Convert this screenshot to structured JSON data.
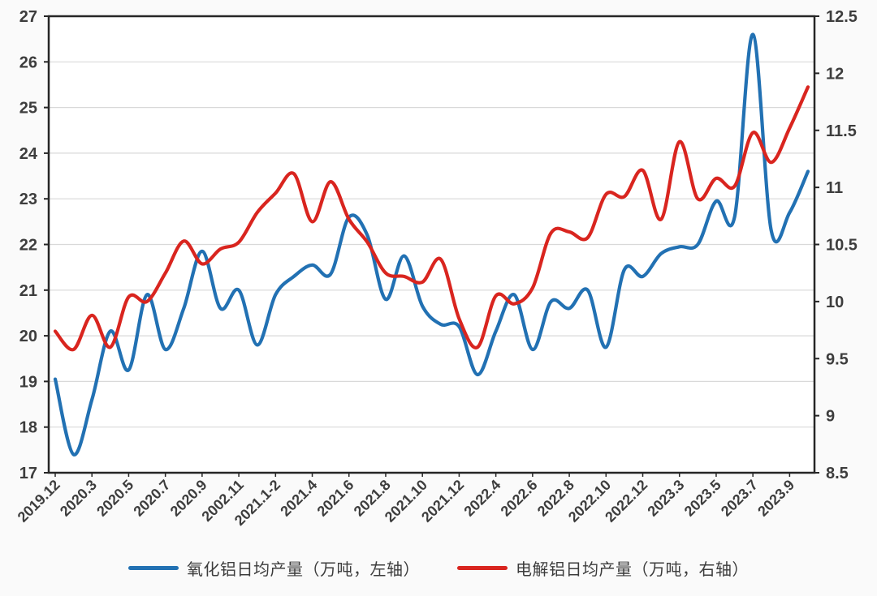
{
  "chart_data": {
    "type": "line",
    "title": "",
    "grid": "horizontal",
    "legend_position": "bottom",
    "x_labels": [
      "2019.12",
      "2020.3",
      "2020.5",
      "2020.7",
      "2020.9",
      "2002.11",
      "2021.1-2",
      "2021.4",
      "2021.6",
      "2021.8",
      "2021.10",
      "2021.12",
      "2022.4",
      "2022.6",
      "2022.8",
      "2022.10",
      "2022.12",
      "2023.3",
      "2023.5",
      "2023.7",
      "2023.9"
    ],
    "left_axis": {
      "min": 17,
      "max": 27,
      "step": 1,
      "tick_labels": [
        "17",
        "18",
        "19",
        "20",
        "21",
        "22",
        "23",
        "24",
        "25",
        "26",
        "27"
      ]
    },
    "right_axis": {
      "min": 8.5,
      "max": 12.5,
      "step": 0.5,
      "tick_labels": [
        "8.5",
        "9",
        "9.5",
        "10",
        "10.5",
        "11",
        "11.5",
        "12",
        "12.5"
      ]
    },
    "series": [
      {
        "name": "氧化铝日均产量（万吨，左轴）",
        "axis": "left",
        "color": "#2271b3",
        "values": [
          19.05,
          17.4,
          18.6,
          20.1,
          19.25,
          20.9,
          19.7,
          20.6,
          21.85,
          20.6,
          21.0,
          19.8,
          20.9,
          21.3,
          21.55,
          21.35,
          22.6,
          22.2,
          20.8,
          21.75,
          20.65,
          20.25,
          20.2,
          19.15,
          20.1,
          20.9,
          19.7,
          20.75,
          20.6,
          21.0,
          19.75,
          21.45,
          21.3,
          21.8,
          21.95,
          22.0,
          22.95,
          22.6,
          26.6,
          22.3,
          22.7,
          23.6
        ]
      },
      {
        "name": "电解铝日均产量（万吨，右轴）",
        "axis": "right",
        "color": "#d9251f",
        "values": [
          9.74,
          9.58,
          9.88,
          9.6,
          10.04,
          10.0,
          10.25,
          10.53,
          10.33,
          10.46,
          10.52,
          10.78,
          10.95,
          11.12,
          10.7,
          11.05,
          10.72,
          10.52,
          10.25,
          10.22,
          10.17,
          10.37,
          9.85,
          9.6,
          10.05,
          9.98,
          10.12,
          10.6,
          10.61,
          10.56,
          10.94,
          10.92,
          11.15,
          10.72,
          11.4,
          10.9,
          11.08,
          11.01,
          11.48,
          11.22,
          11.52,
          11.88
        ]
      }
    ]
  },
  "legend": {
    "series1": "氧化铝日均产量（万吨，左轴）",
    "series2": "电解铝日均产量（万吨，右轴）"
  }
}
